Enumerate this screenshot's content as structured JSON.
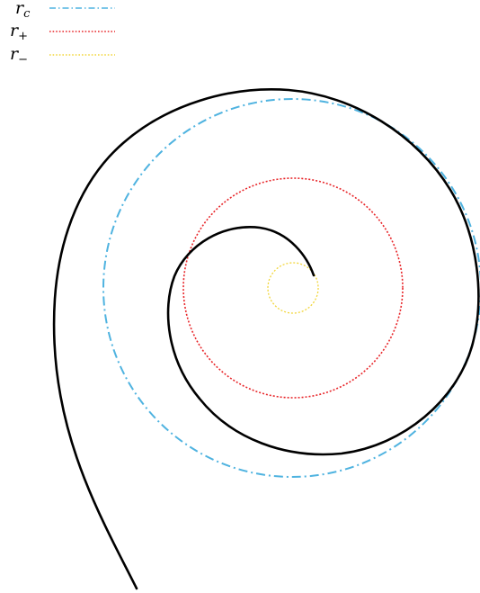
{
  "legend": {
    "items": [
      {
        "symbol": "r",
        "subscript": "c",
        "color": "#4fb3e0",
        "dash": "dash-dot"
      },
      {
        "symbol": "r",
        "subscript": "+",
        "color": "#e8262a",
        "dash": "dotted"
      },
      {
        "symbol": "r",
        "subscript": "−",
        "color": "#f2d63a",
        "dash": "dotted"
      }
    ]
  },
  "curves": {
    "spiral": {
      "color": "#000000",
      "style": "solid"
    },
    "r_c": {
      "color": "#4fb3e0",
      "style": "dash-dot"
    },
    "r_plus": {
      "color": "#e8262a",
      "style": "dotted"
    },
    "r_minus": {
      "color": "#f2d63a",
      "style": "dotted"
    }
  }
}
